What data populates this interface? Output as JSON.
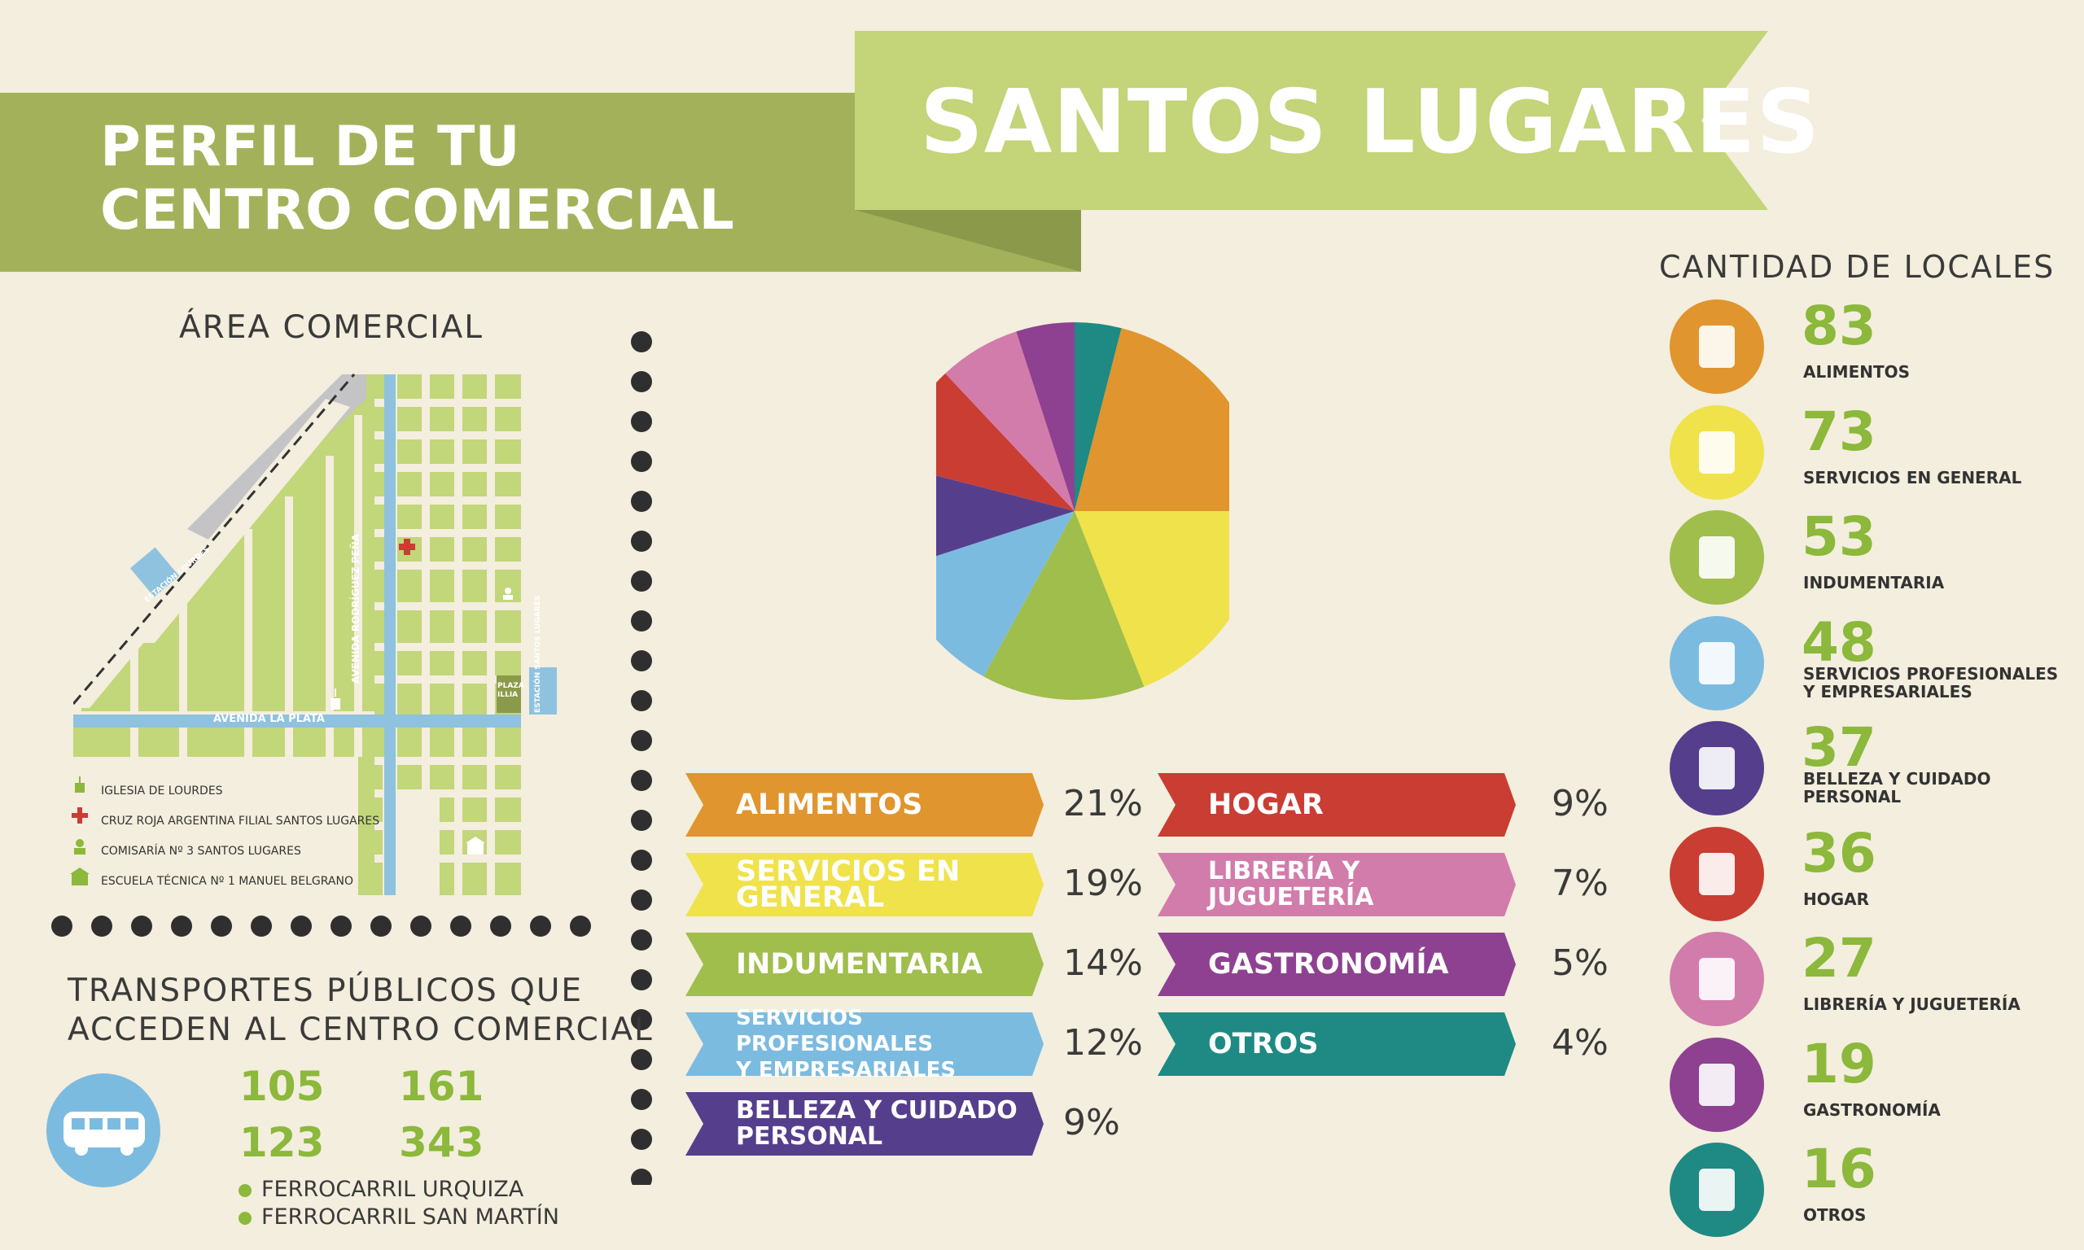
{
  "header": {
    "line1": "PERFIL DE TU",
    "line2": "CENTRO COMERCIAL",
    "title": "SANTOS LUGARES"
  },
  "area": {
    "title": "ÁREA COMERCIAL",
    "streets": {
      "la_plata": "AVENIDA LA PLATA",
      "rodriguez_pena": "AVENIDA RODRÍGUEZ PEÑA"
    },
    "stations": {
      "lourdes": "ESTACIÓN LOURDES",
      "santos_lugares": "ESTACIÓN SANTOS LUGARES"
    },
    "plaza": "PLAZA ILLIA",
    "legend": [
      "IGLESIA DE LOURDES",
      "CRUZ ROJA ARGENTINA FILIAL SANTOS LUGARES",
      "COMISARÍA Nº 3 SANTOS LUGARES",
      "ESCUELA TÉCNICA Nº 1 MANUEL BELGRANO"
    ]
  },
  "transport": {
    "title1": "TRANSPORTES PÚBLICOS QUE",
    "title2": "ACCEDEN AL CENTRO COMERCIAL",
    "buses": [
      "105",
      "161",
      "123",
      "343"
    ],
    "trains": [
      "FERROCARRIL URQUIZA",
      "FERROCARRIL SAN MARTÍN"
    ]
  },
  "locales": {
    "title": "CANTIDAD DE LOCALES",
    "items": [
      {
        "count": "83",
        "name1": "ALIMENTOS",
        "name2": "",
        "color": "#e0952e"
      },
      {
        "count": "73",
        "name1": "SERVICIOS EN GENERAL",
        "name2": "",
        "color": "#f0e24a"
      },
      {
        "count": "53",
        "name1": "INDUMENTARIA",
        "name2": "",
        "color": "#9fbe4c"
      },
      {
        "count": "48",
        "name1": "SERVICIOS PROFESIONALES",
        "name2": "Y EMPRESARIALES",
        "color": "#7cbbe0"
      },
      {
        "count": "37",
        "name1": "BELLEZA Y CUIDADO",
        "name2": "PERSONAL",
        "color": "#553f8c"
      },
      {
        "count": "36",
        "name1": "HOGAR",
        "name2": "",
        "color": "#c93d33"
      },
      {
        "count": "27",
        "name1": "LIBRERÍA Y JUGUETERÍA",
        "name2": "",
        "color": "#d27cab"
      },
      {
        "count": "19",
        "name1": "GASTRONOMÍA",
        "name2": "",
        "color": "#8e4191"
      },
      {
        "count": "16",
        "name1": "OTROS",
        "name2": "",
        "color": "#1e8a83"
      }
    ]
  },
  "chart_data": {
    "type": "pie",
    "categories": [
      "ALIMENTOS",
      "SERVICIOS EN GENERAL",
      "INDUMENTARIA",
      "SERVICIOS PROFESIONALES Y EMPRESARIALES",
      "BELLEZA Y CUIDADO PERSONAL",
      "HOGAR",
      "LIBRERÍA Y JUGUETERÍA",
      "GASTRONOMÍA",
      "OTROS"
    ],
    "labels": [
      [
        "ALIMENTOS"
      ],
      [
        "SERVICIOS EN",
        "GENERAL"
      ],
      [
        "INDUMENTARIA"
      ],
      [
        "SERVICIOS PROFESIONALES",
        "Y EMPRESARIALES"
      ],
      [
        "BELLEZA Y CUIDADO",
        "PERSONAL"
      ],
      [
        "HOGAR"
      ],
      [
        "LIBRERÍA Y",
        "JUGUETERÍA"
      ],
      [
        "GASTRONOMÍA"
      ],
      [
        "OTROS"
      ]
    ],
    "values": [
      21,
      19,
      14,
      12,
      9,
      9,
      7,
      5,
      4
    ],
    "value_labels": [
      "21%",
      "19%",
      "14%",
      "12%",
      "9%",
      "9%",
      "7%",
      "5%",
      "4%"
    ],
    "colors": [
      "#e0952e",
      "#f0e24a",
      "#9fbe4c",
      "#7cbbe0",
      "#553f8c",
      "#c93d33",
      "#d27cab",
      "#8e4191",
      "#1e8a83"
    ],
    "start_slice": "OTROS",
    "direction": "clockwise"
  }
}
